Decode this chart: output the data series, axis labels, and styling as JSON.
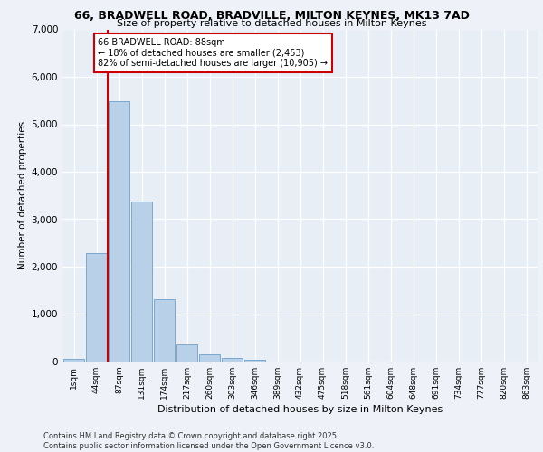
{
  "title_line1": "66, BRADWELL ROAD, BRADVILLE, MILTON KEYNES, MK13 7AD",
  "title_line2": "Size of property relative to detached houses in Milton Keynes",
  "xlabel": "Distribution of detached houses by size in Milton Keynes",
  "ylabel": "Number of detached properties",
  "categories": [
    "1sqm",
    "44sqm",
    "87sqm",
    "131sqm",
    "174sqm",
    "217sqm",
    "260sqm",
    "303sqm",
    "346sqm",
    "389sqm",
    "432sqm",
    "475sqm",
    "518sqm",
    "561sqm",
    "604sqm",
    "648sqm",
    "691sqm",
    "734sqm",
    "777sqm",
    "820sqm",
    "863sqm"
  ],
  "values": [
    50,
    2280,
    5480,
    3380,
    1320,
    370,
    155,
    80,
    30,
    8,
    4,
    2,
    1,
    0,
    0,
    0,
    0,
    0,
    0,
    0,
    0
  ],
  "bar_color": "#b8d0e8",
  "bar_edgecolor": "#7aa8cc",
  "vline_color": "#cc0000",
  "vline_x_index": 1.5,
  "annotation_title": "66 BRADWELL ROAD: 88sqm",
  "annotation_line1": "← 18% of detached houses are smaller (2,453)",
  "annotation_line2": "82% of semi-detached houses are larger (10,905) →",
  "annotation_box_edgecolor": "#cc0000",
  "ylim": [
    0,
    7000
  ],
  "yticks": [
    0,
    1000,
    2000,
    3000,
    4000,
    5000,
    6000,
    7000
  ],
  "footer_line1": "Contains HM Land Registry data © Crown copyright and database right 2025.",
  "footer_line2": "Contains public sector information licensed under the Open Government Licence v3.0.",
  "bg_color": "#eef2f8",
  "plot_bg_color": "#e8eef6"
}
